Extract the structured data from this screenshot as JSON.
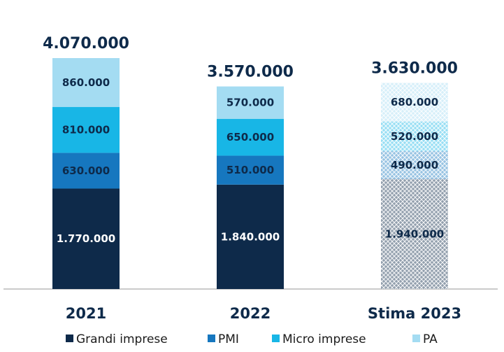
{
  "chart_data": {
    "type": "bar",
    "stacked": true,
    "categories": [
      "2021",
      "2022",
      "Stima 2023"
    ],
    "series": [
      {
        "name": "Grandi imprese",
        "values": [
          1770000,
          1840000,
          1940000
        ],
        "labels": [
          "1.770.000",
          "1.840.000",
          "1.940.000"
        ],
        "color": "#0e2a4a"
      },
      {
        "name": "PMI",
        "values": [
          630000,
          510000,
          490000
        ],
        "labels": [
          "630.000",
          "510.000",
          "490.000"
        ],
        "color": "#1677bf"
      },
      {
        "name": "Micro imprese",
        "values": [
          810000,
          650000,
          520000
        ],
        "labels": [
          "810.000",
          "650.000",
          "520.000"
        ],
        "color": "#18b6e6"
      },
      {
        "name": "PA",
        "values": [
          860000,
          570000,
          680000
        ],
        "labels": [
          "860.000",
          "570.000",
          "680.000"
        ],
        "color": "#a4dcf2"
      }
    ],
    "totals": [
      4070000,
      3570000,
      3630000
    ],
    "total_labels": [
      "4.070.000",
      "3.570.000",
      "3.630.000"
    ],
    "estimated_category": "Stima 2023",
    "legend_position": "bottom",
    "grid": false,
    "ylim": [
      0,
      4070000
    ]
  }
}
